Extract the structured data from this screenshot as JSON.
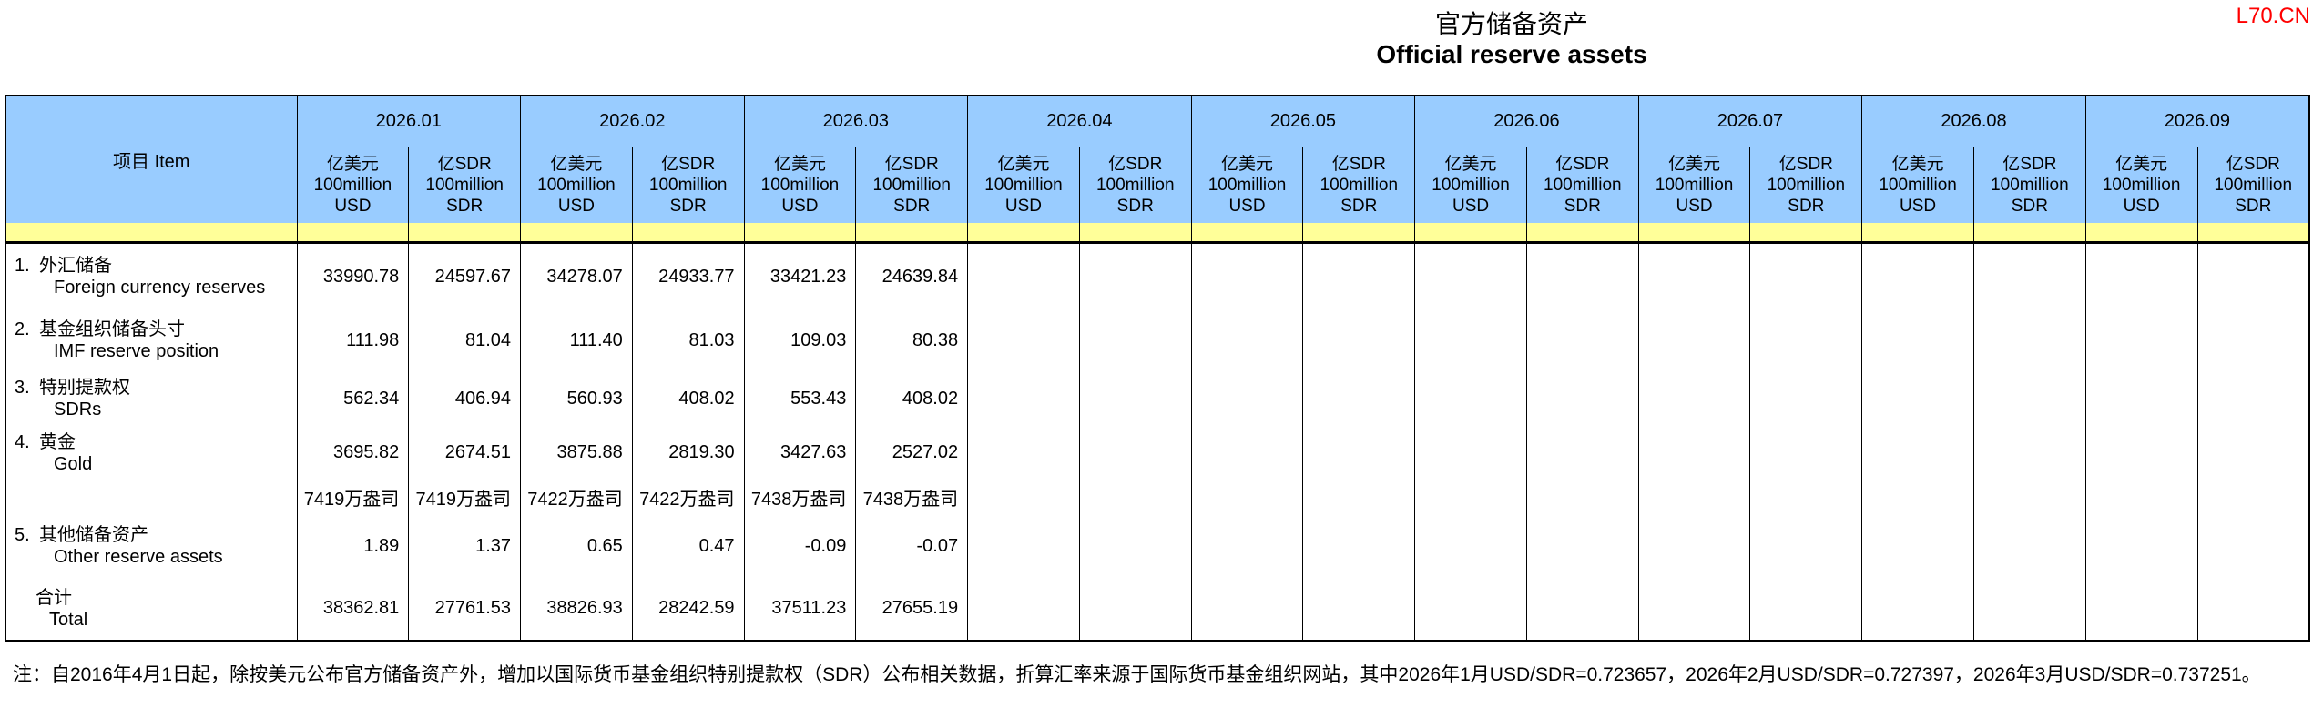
{
  "page": {
    "title_zh": "官方储备资产",
    "title_en": "Official reserve assets",
    "watermark": "L70.CN",
    "footnote": "注：自2016年4月1日起，除按美元公布官方储备资产外，增加以国际货币基金组织特别提款权（SDR）公布相关数据，折算汇率来源于国际货币基金组织网站，其中2026年1月USD/SDR=0.723657，2026年2月USD/SDR=0.727397，2026年3月USD/SDR=0.737251。"
  },
  "colors": {
    "header_blue": "#99CCFF",
    "band_yellow": "#FFFF99",
    "watermark_red": "#FF0000",
    "border_black": "#000000"
  },
  "table": {
    "item_header": "项目  Item",
    "months": [
      "2026.01",
      "2026.02",
      "2026.03",
      "2026.04",
      "2026.05",
      "2026.06",
      "2026.07",
      "2026.08",
      "2026.09"
    ],
    "unit_usd": [
      "亿美元",
      "100million",
      "USD"
    ],
    "unit_sdr": [
      "亿SDR",
      "100million",
      "SDR"
    ],
    "rows": [
      {
        "key": "foreign-currency-reserves",
        "no": "1.",
        "zh": "外汇储备",
        "en": "Foreign currency reserves",
        "values": [
          "33990.78",
          "24597.67",
          "34278.07",
          "24933.77",
          "33421.23",
          "24639.84",
          "",
          "",
          "",
          "",
          "",
          "",
          "",
          "",
          "",
          "",
          "",
          ""
        ]
      },
      {
        "key": "imf-reserve-position",
        "no": "2.",
        "zh": "基金组织储备头寸",
        "en": "IMF reserve position",
        "values": [
          "111.98",
          "81.04",
          "111.40",
          "81.03",
          "109.03",
          "80.38",
          "",
          "",
          "",
          "",
          "",
          "",
          "",
          "",
          "",
          "",
          "",
          ""
        ]
      },
      {
        "key": "sdrs",
        "no": "3.",
        "zh": "特别提款权",
        "en": "SDRs",
        "values": [
          "562.34",
          "406.94",
          "560.93",
          "408.02",
          "553.43",
          "408.02",
          "",
          "",
          "",
          "",
          "",
          "",
          "",
          "",
          "",
          "",
          "",
          ""
        ]
      },
      {
        "key": "gold",
        "no": "4.",
        "zh": "黄金",
        "en": "Gold",
        "values": [
          "3695.82",
          "2674.51",
          "3875.88",
          "2819.30",
          "3427.63",
          "2527.02",
          "",
          "",
          "",
          "",
          "",
          "",
          "",
          "",
          "",
          "",
          "",
          ""
        ]
      },
      {
        "key": "gold-ounces",
        "no": "",
        "zh": "",
        "en": "",
        "values": [
          "7419万盎司",
          "7419万盎司",
          "7422万盎司",
          "7422万盎司",
          "7438万盎司",
          "7438万盎司",
          "",
          "",
          "",
          "",
          "",
          "",
          "",
          "",
          "",
          "",
          "",
          ""
        ]
      },
      {
        "key": "other-reserve-assets",
        "no": "5.",
        "zh": "其他储备资产",
        "en": "Other reserve assets",
        "values": [
          "1.89",
          "1.37",
          "0.65",
          "0.47",
          "-0.09",
          "-0.07",
          "",
          "",
          "",
          "",
          "",
          "",
          "",
          "",
          "",
          "",
          "",
          ""
        ]
      },
      {
        "key": "total",
        "no": "",
        "zh": "合计",
        "en": "Total",
        "values": [
          "38362.81",
          "27761.53",
          "38826.93",
          "28242.59",
          "37511.23",
          "27655.19",
          "",
          "",
          "",
          "",
          "",
          "",
          "",
          "",
          "",
          "",
          "",
          ""
        ]
      }
    ]
  }
}
